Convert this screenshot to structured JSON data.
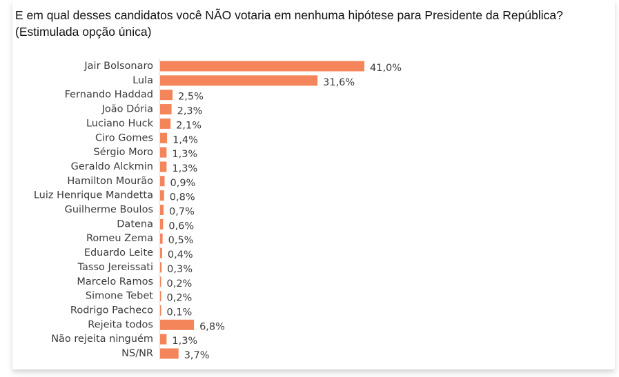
{
  "chart_data": {
    "type": "bar",
    "orientation": "horizontal",
    "title_line1": "E em qual desses candidatos você NÃO votaria em nenhuma hipótese para Presidente da República?",
    "title_line2": "(Estimulada opção única)",
    "xlabel": "",
    "ylabel": "",
    "bar_color": "#F4845A",
    "grid": false,
    "legend": "none",
    "xlim": [
      0,
      41.0
    ],
    "categories": [
      "Jair Bolsonaro",
      "Lula",
      "Fernando Haddad",
      "João Dória",
      "Luciano Huck",
      "Ciro Gomes",
      "Sérgio Moro",
      "Geraldo Alckmin",
      "Hamilton Mourão",
      "Luiz Henrique Mandetta",
      "Guilherme Boulos",
      "Datena",
      "Romeu Zema",
      "Eduardo Leite",
      "Tasso Jereissati",
      "Marcelo Ramos",
      "Simone Tebet",
      "Rodrigo Pacheco",
      "Rejeita todos",
      "Não rejeita ninguém",
      "NS/NR"
    ],
    "values": [
      41.0,
      31.6,
      2.5,
      2.3,
      2.1,
      1.4,
      1.3,
      1.3,
      0.9,
      0.8,
      0.7,
      0.6,
      0.5,
      0.4,
      0.3,
      0.2,
      0.2,
      0.1,
      6.8,
      1.3,
      3.7
    ],
    "value_labels": [
      "41,0%",
      "31,6%",
      "2,5%",
      "2,3%",
      "2,1%",
      "1,4%",
      "1,3%",
      "1,3%",
      "0,9%",
      "0,8%",
      "0,7%",
      "0,6%",
      "0,5%",
      "0,4%",
      "0,3%",
      "0,2%",
      "0,2%",
      "0,1%",
      "6,8%",
      "1,3%",
      "3,7%"
    ]
  }
}
